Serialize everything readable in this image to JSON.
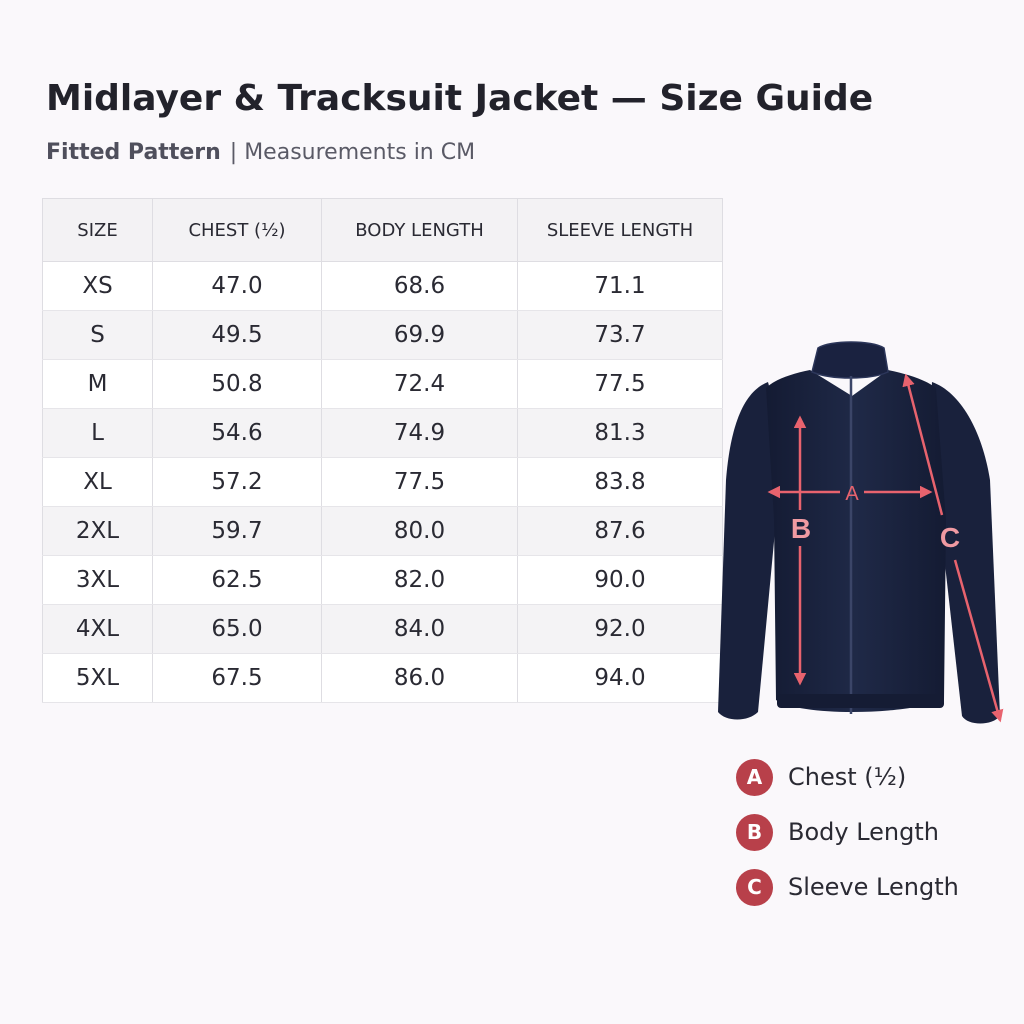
{
  "title": "Midlayer & Tracksuit Jacket — Size Guide",
  "subtitle": {
    "pattern": "Fitted Pattern",
    "separator": "|",
    "units": "Measurements in CM"
  },
  "table": {
    "headers": [
      "SIZE",
      "CHEST (½)",
      "BODY LENGTH",
      "SLEEVE LENGTH"
    ],
    "rows": [
      [
        "XS",
        "47.0",
        "68.6",
        "71.1"
      ],
      [
        "S",
        "49.5",
        "69.9",
        "73.7"
      ],
      [
        "M",
        "50.8",
        "72.4",
        "77.5"
      ],
      [
        "L",
        "54.6",
        "74.9",
        "81.3"
      ],
      [
        "XL",
        "57.2",
        "77.5",
        "83.8"
      ],
      [
        "2XL",
        "59.7",
        "80.0",
        "87.6"
      ],
      [
        "3XL",
        "62.5",
        "82.0",
        "90.0"
      ],
      [
        "4XL",
        "65.0",
        "84.0",
        "92.0"
      ],
      [
        "5XL",
        "67.5",
        "86.0",
        "94.0"
      ]
    ]
  },
  "diagram": {
    "marker_a": "A",
    "marker_b": "B",
    "marker_c": "C",
    "jacket_color": "#1b2440",
    "arrow_color": "#e8636e"
  },
  "legend": [
    {
      "letter": "A",
      "label": "Chest (½)"
    },
    {
      "letter": "B",
      "label": "Body Length"
    },
    {
      "letter": "C",
      "label": "Sleeve Length"
    }
  ]
}
